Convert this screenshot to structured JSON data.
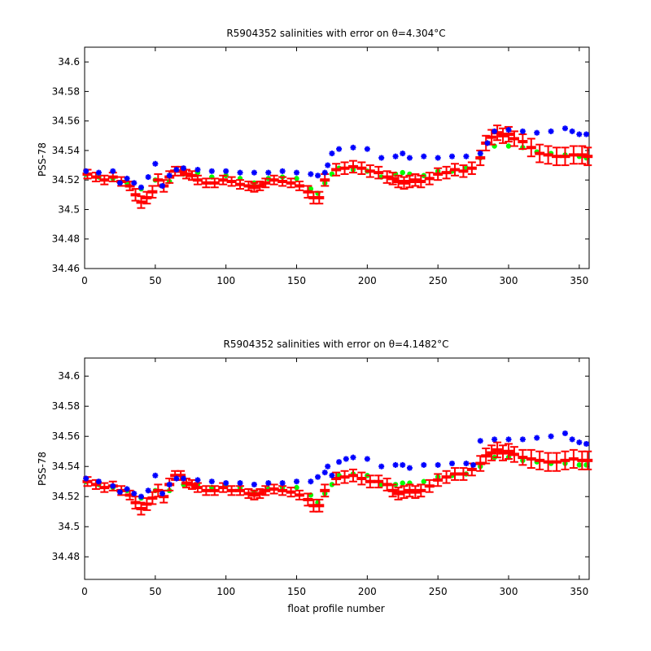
{
  "colors": {
    "blue": "#0000ff",
    "red": "#ff0000",
    "green": "#00ff00"
  },
  "chart_data": [
    {
      "type": "scatter",
      "title": "R5904352 salinities with error on θ=4.304°C",
      "xlabel": "",
      "ylabel": "PSS-78",
      "xlim": [
        0,
        357
      ],
      "ylim": [
        34.46,
        34.61
      ],
      "xticks": [
        "0",
        "50",
        "100",
        "150",
        "200",
        "250",
        "300",
        "350"
      ],
      "yticks": [
        "34.46",
        "34.48",
        "34.5",
        "34.52",
        "34.54",
        "34.56",
        "34.58",
        "34.6"
      ],
      "grid": false,
      "series": [
        {
          "marker": "star",
          "color": "#0000ff",
          "x": [
            1,
            10,
            20,
            25,
            30,
            35,
            40,
            45,
            50,
            55,
            60,
            65,
            70,
            80,
            90,
            100,
            110,
            120,
            130,
            140,
            150,
            160,
            165,
            170,
            172,
            175,
            180,
            190,
            200,
            210,
            220,
            225,
            230,
            240,
            250,
            260,
            270,
            280,
            285,
            290,
            300,
            310,
            320,
            330,
            340,
            345,
            350,
            355
          ],
          "values": [
            34.526,
            34.525,
            34.526,
            34.518,
            34.521,
            34.518,
            34.515,
            34.522,
            34.531,
            34.516,
            34.523,
            34.527,
            34.528,
            34.527,
            34.526,
            34.526,
            34.525,
            34.525,
            34.525,
            34.526,
            34.525,
            34.524,
            34.523,
            34.525,
            34.53,
            34.538,
            34.541,
            34.542,
            34.541,
            34.535,
            34.536,
            34.538,
            34.535,
            34.536,
            34.535,
            34.536,
            34.536,
            34.538,
            34.545,
            34.553,
            34.554,
            34.553,
            34.552,
            34.553,
            34.555,
            34.553,
            34.551,
            34.551
          ]
        },
        {
          "marker": "dot",
          "color": "#00ff00",
          "x": [
            1,
            10,
            20,
            30,
            40,
            50,
            60,
            70,
            80,
            90,
            100,
            110,
            120,
            130,
            140,
            150,
            160,
            165,
            170,
            175,
            180,
            190,
            200,
            210,
            220,
            225,
            230,
            240,
            250,
            260,
            270,
            280,
            290,
            300,
            310,
            320,
            330,
            340,
            350,
            355
          ],
          "values": [
            34.524,
            34.522,
            34.521,
            34.518,
            34.514,
            34.52,
            34.519,
            34.524,
            34.525,
            34.522,
            34.523,
            34.521,
            34.518,
            34.521,
            34.522,
            34.521,
            34.514,
            34.511,
            34.518,
            34.524,
            34.528,
            34.527,
            34.526,
            34.522,
            34.524,
            34.525,
            34.524,
            34.523,
            34.526,
            34.526,
            34.528,
            34.535,
            34.543,
            34.543,
            34.542,
            34.539,
            34.538,
            34.537,
            34.536,
            34.535
          ]
        },
        {
          "marker": "errorbar",
          "color": "#ff0000",
          "x": [
            2,
            8,
            14,
            20,
            26,
            32,
            36,
            40,
            44,
            48,
            52,
            56,
            60,
            64,
            68,
            72,
            76,
            80,
            86,
            92,
            98,
            104,
            110,
            116,
            120,
            124,
            128,
            134,
            140,
            146,
            152,
            158,
            162,
            166,
            170,
            178,
            184,
            190,
            196,
            202,
            208,
            214,
            218,
            222,
            226,
            230,
            234,
            238,
            244,
            250,
            256,
            262,
            268,
            274,
            280,
            284,
            288,
            292,
            296,
            300,
            304,
            310,
            316,
            322,
            328,
            334,
            340,
            346,
            352,
            356
          ],
          "values": [
            34.524,
            34.522,
            34.52,
            34.522,
            34.519,
            34.516,
            34.51,
            34.505,
            34.508,
            34.512,
            34.52,
            34.516,
            34.522,
            34.526,
            34.526,
            34.524,
            34.523,
            34.52,
            34.518,
            34.518,
            34.52,
            34.519,
            34.517,
            34.516,
            34.515,
            34.516,
            34.518,
            34.52,
            34.519,
            34.518,
            34.516,
            34.512,
            34.508,
            34.508,
            34.52,
            34.527,
            34.528,
            34.529,
            34.528,
            34.526,
            34.525,
            34.522,
            34.521,
            34.519,
            34.518,
            34.519,
            34.52,
            34.519,
            34.521,
            34.524,
            34.525,
            34.527,
            34.526,
            34.528,
            34.535,
            34.545,
            34.549,
            34.552,
            34.55,
            34.551,
            34.548,
            34.546,
            34.542,
            34.538,
            34.537,
            34.536,
            34.536,
            34.537,
            34.537,
            34.536
          ],
          "errors": [
            0.003,
            0.003,
            0.003,
            0.003,
            0.003,
            0.003,
            0.004,
            0.004,
            0.004,
            0.004,
            0.004,
            0.004,
            0.004,
            0.003,
            0.003,
            0.003,
            0.003,
            0.003,
            0.003,
            0.003,
            0.003,
            0.003,
            0.003,
            0.003,
            0.003,
            0.003,
            0.003,
            0.003,
            0.003,
            0.003,
            0.003,
            0.004,
            0.004,
            0.004,
            0.004,
            0.004,
            0.004,
            0.004,
            0.004,
            0.004,
            0.004,
            0.004,
            0.004,
            0.004,
            0.004,
            0.004,
            0.004,
            0.004,
            0.004,
            0.004,
            0.004,
            0.004,
            0.004,
            0.004,
            0.005,
            0.005,
            0.005,
            0.005,
            0.005,
            0.005,
            0.005,
            0.005,
            0.006,
            0.006,
            0.006,
            0.006,
            0.006,
            0.006,
            0.006,
            0.006
          ]
        }
      ]
    },
    {
      "type": "scatter",
      "title": "R5904352 salinities with error on θ=4.1482°C",
      "xlabel": "float profile number",
      "ylabel": "PSS-78",
      "xlim": [
        0,
        357
      ],
      "ylim": [
        34.465,
        34.612
      ],
      "xticks": [
        "0",
        "50",
        "100",
        "150",
        "200",
        "250",
        "300",
        "350"
      ],
      "yticks": [
        "34.48",
        "34.5",
        "34.52",
        "34.54",
        "34.56",
        "34.58",
        "34.6"
      ],
      "grid": false,
      "series": [
        {
          "marker": "star",
          "color": "#0000ff",
          "x": [
            1,
            10,
            20,
            25,
            30,
            35,
            40,
            45,
            50,
            55,
            60,
            65,
            70,
            80,
            90,
            100,
            110,
            120,
            130,
            140,
            150,
            160,
            165,
            170,
            172,
            175,
            180,
            185,
            190,
            200,
            210,
            220,
            225,
            230,
            240,
            250,
            260,
            270,
            275,
            280,
            290,
            300,
            310,
            320,
            330,
            340,
            345,
            350,
            355
          ],
          "values": [
            34.532,
            34.53,
            34.527,
            34.523,
            34.525,
            34.522,
            34.52,
            34.524,
            34.534,
            34.522,
            34.528,
            34.532,
            34.532,
            34.531,
            34.53,
            34.529,
            34.529,
            34.528,
            34.529,
            34.529,
            34.53,
            34.53,
            34.533,
            34.536,
            34.54,
            34.534,
            34.543,
            34.545,
            34.546,
            34.545,
            34.54,
            34.541,
            34.541,
            34.539,
            34.541,
            34.541,
            34.542,
            34.542,
            34.541,
            34.557,
            34.558,
            34.558,
            34.558,
            34.559,
            34.56,
            34.562,
            34.558,
            34.556,
            34.555
          ]
        },
        {
          "marker": "dot",
          "color": "#00ff00",
          "x": [
            1,
            10,
            20,
            30,
            40,
            50,
            60,
            70,
            80,
            90,
            100,
            110,
            120,
            130,
            140,
            150,
            160,
            165,
            170,
            175,
            180,
            190,
            200,
            210,
            220,
            225,
            230,
            240,
            250,
            260,
            270,
            280,
            290,
            300,
            310,
            320,
            330,
            340,
            350,
            355
          ],
          "values": [
            34.53,
            34.528,
            34.526,
            34.524,
            34.519,
            34.524,
            34.524,
            34.528,
            34.528,
            34.526,
            34.527,
            34.526,
            34.523,
            34.525,
            34.526,
            34.526,
            34.521,
            34.516,
            34.522,
            34.528,
            34.534,
            34.535,
            34.534,
            34.528,
            34.528,
            34.529,
            34.529,
            34.53,
            34.533,
            34.534,
            34.535,
            34.54,
            34.546,
            34.546,
            34.544,
            34.543,
            34.542,
            34.542,
            34.541,
            34.541
          ]
        },
        {
          "marker": "errorbar",
          "color": "#ff0000",
          "x": [
            2,
            8,
            14,
            20,
            26,
            32,
            36,
            40,
            44,
            48,
            52,
            56,
            60,
            64,
            68,
            72,
            76,
            80,
            86,
            92,
            98,
            104,
            110,
            116,
            120,
            124,
            128,
            134,
            140,
            146,
            152,
            158,
            162,
            166,
            170,
            178,
            184,
            190,
            196,
            202,
            208,
            214,
            218,
            222,
            226,
            230,
            234,
            238,
            244,
            250,
            256,
            262,
            268,
            274,
            280,
            284,
            288,
            292,
            296,
            300,
            304,
            310,
            316,
            322,
            328,
            334,
            340,
            346,
            352,
            356
          ],
          "values": [
            34.53,
            34.528,
            34.526,
            34.527,
            34.524,
            34.521,
            34.516,
            34.512,
            34.515,
            34.519,
            34.524,
            34.52,
            34.528,
            34.534,
            34.534,
            34.529,
            34.528,
            34.526,
            34.524,
            34.524,
            34.526,
            34.524,
            34.524,
            34.522,
            34.521,
            34.522,
            34.524,
            34.525,
            34.524,
            34.523,
            34.521,
            34.518,
            34.514,
            34.514,
            34.524,
            34.532,
            34.533,
            34.534,
            34.532,
            34.53,
            34.53,
            34.528,
            34.524,
            34.522,
            34.523,
            34.524,
            34.523,
            34.524,
            34.527,
            34.531,
            34.533,
            34.535,
            34.535,
            34.538,
            34.542,
            34.547,
            34.549,
            34.551,
            34.549,
            34.55,
            34.548,
            34.546,
            34.545,
            34.544,
            34.543,
            34.543,
            34.544,
            34.545,
            34.544,
            34.544
          ],
          "errors": [
            0.003,
            0.003,
            0.003,
            0.003,
            0.003,
            0.003,
            0.004,
            0.004,
            0.004,
            0.004,
            0.004,
            0.004,
            0.004,
            0.003,
            0.003,
            0.003,
            0.003,
            0.003,
            0.003,
            0.003,
            0.003,
            0.003,
            0.003,
            0.003,
            0.003,
            0.003,
            0.003,
            0.003,
            0.003,
            0.003,
            0.003,
            0.004,
            0.004,
            0.004,
            0.004,
            0.004,
            0.004,
            0.004,
            0.004,
            0.004,
            0.004,
            0.004,
            0.004,
            0.004,
            0.004,
            0.004,
            0.004,
            0.004,
            0.004,
            0.004,
            0.004,
            0.004,
            0.004,
            0.004,
            0.005,
            0.005,
            0.005,
            0.005,
            0.005,
            0.005,
            0.005,
            0.005,
            0.006,
            0.006,
            0.006,
            0.006,
            0.006,
            0.006,
            0.006,
            0.006
          ]
        }
      ]
    }
  ]
}
